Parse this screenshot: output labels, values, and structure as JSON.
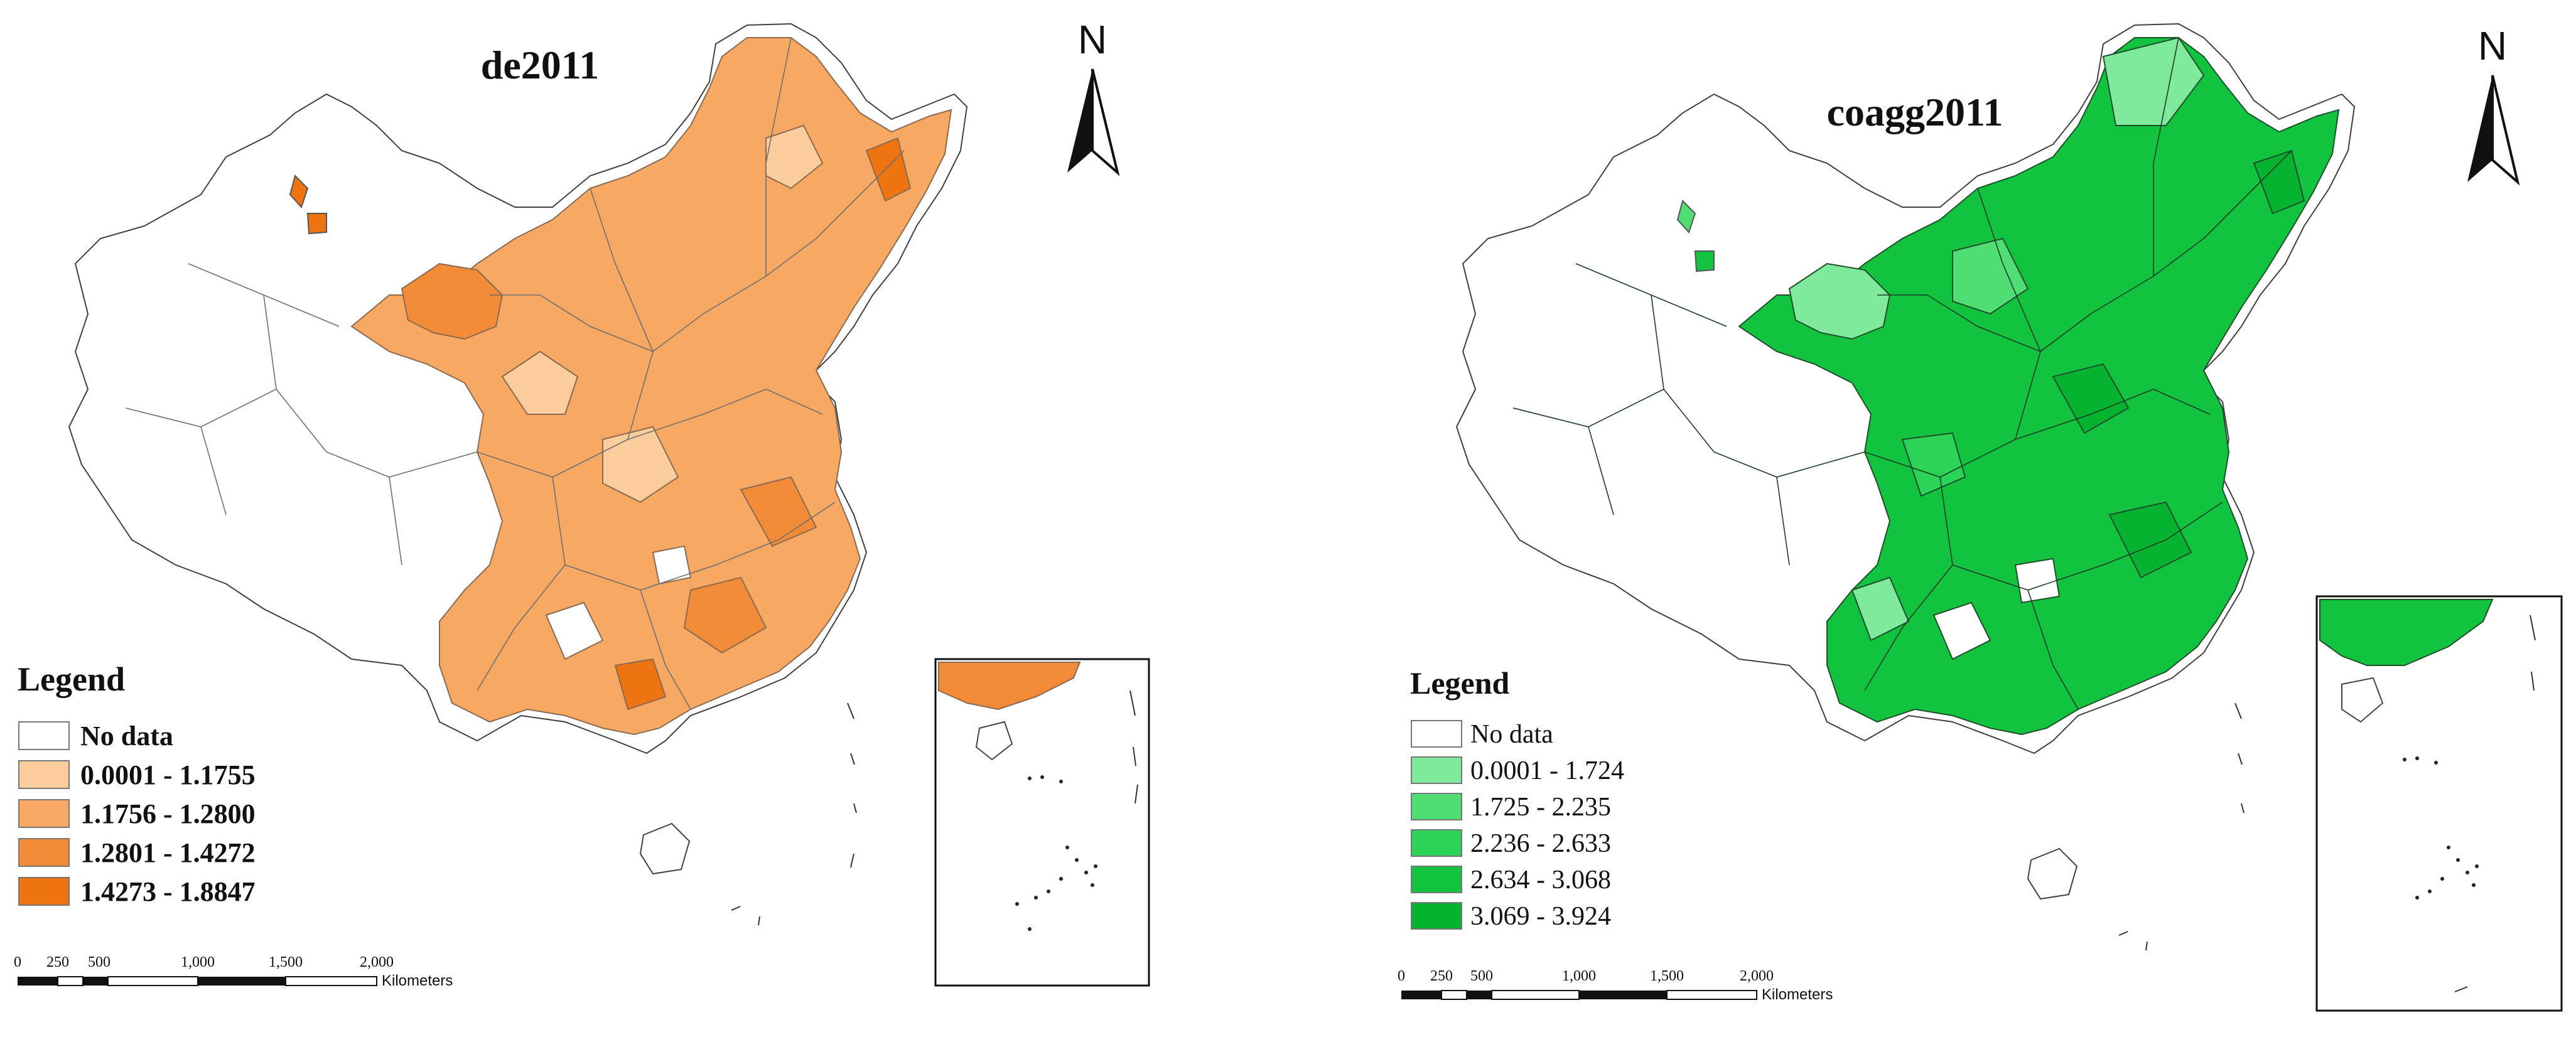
{
  "maps": [
    {
      "title": "de2011",
      "legend": {
        "title": "Legend",
        "items": [
          {
            "label": "No data",
            "color": "#ffffff"
          },
          {
            "label": "0.0001 - 1.1755",
            "color": "#fbcc9c"
          },
          {
            "label": "1.1756 - 1.2800",
            "color": "#f7a963"
          },
          {
            "label": "1.2801 - 1.4272",
            "color": "#f28b38"
          },
          {
            "label": "1.4273 - 1.8847",
            "color": "#ee7411"
          }
        ]
      },
      "scale": {
        "ticks": [
          "0",
          "250",
          "500",
          "1,000",
          "1,500",
          "2,000"
        ],
        "unit": "Kilometers"
      },
      "north_label": "N"
    },
    {
      "title": "coagg2011",
      "legend": {
        "title": "Legend",
        "items": [
          {
            "label": "No data",
            "color": "#ffffff"
          },
          {
            "label": "0.0001 - 1.724",
            "color": "#7fe99c"
          },
          {
            "label": "1.725 - 2.235",
            "color": "#4fdd74"
          },
          {
            "label": "2.236 - 2.633",
            "color": "#2bd356"
          },
          {
            "label": "2.634 - 3.068",
            "color": "#12c340"
          },
          {
            "label": "3.069 - 3.924",
            "color": "#06b330"
          }
        ]
      },
      "scale": {
        "ticks": [
          "0",
          "250",
          "500",
          "1,000",
          "1,500",
          "2,000"
        ],
        "unit": "Kilometers"
      },
      "north_label": "N"
    }
  ]
}
